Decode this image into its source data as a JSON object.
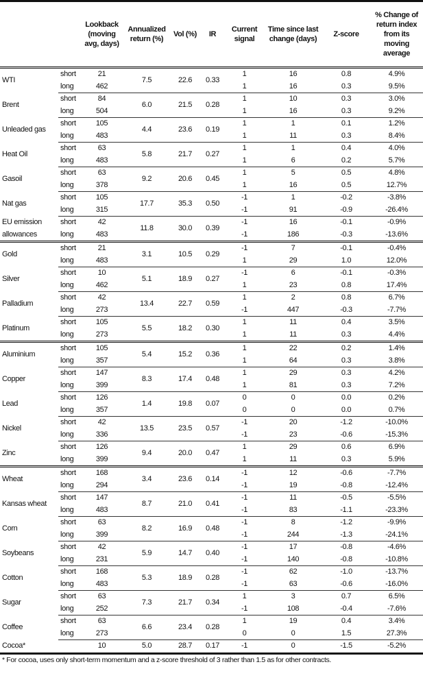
{
  "headers": [
    "",
    "",
    "Lookback (moving avg, days)",
    "Annualized return (%)",
    "Vol (%)",
    "IR",
    "Current signal",
    "Time since last change (days)",
    "Z-score",
    "% Change of return index from its moving average"
  ],
  "rows": [
    {
      "name": "WTI",
      "ann": "7.5",
      "vol": "22.6",
      "ir": "0.33",
      "short": [
        "21",
        "1",
        "16",
        "0.8",
        "4.9%"
      ],
      "long": [
        "462",
        "1",
        "16",
        "0.3",
        "9.5%"
      ]
    },
    {
      "name": "Brent",
      "ann": "6.0",
      "vol": "21.5",
      "ir": "0.28",
      "short": [
        "84",
        "1",
        "10",
        "0.3",
        "3.0%"
      ],
      "long": [
        "504",
        "1",
        "16",
        "0.3",
        "9.2%"
      ]
    },
    {
      "name": "Unleaded gas",
      "ann": "4.4",
      "vol": "23.6",
      "ir": "0.19",
      "short": [
        "105",
        "1",
        "1",
        "0.1",
        "1.2%"
      ],
      "long": [
        "483",
        "1",
        "11",
        "0.3",
        "8.4%"
      ]
    },
    {
      "name": "Heat Oil",
      "ann": "5.8",
      "vol": "21.7",
      "ir": "0.27",
      "short": [
        "63",
        "1",
        "1",
        "0.4",
        "4.0%"
      ],
      "long": [
        "483",
        "1",
        "6",
        "0.2",
        "5.7%"
      ]
    },
    {
      "name": "Gasoil",
      "ann": "9.2",
      "vol": "20.6",
      "ir": "0.45",
      "short": [
        "63",
        "1",
        "5",
        "0.5",
        "4.8%"
      ],
      "long": [
        "378",
        "1",
        "16",
        "0.5",
        "12.7%"
      ]
    },
    {
      "name": "Nat gas",
      "ann": "17.7",
      "vol": "35.3",
      "ir": "0.50",
      "short": [
        "105",
        "-1",
        "1",
        "-0.2",
        "-3.8%"
      ],
      "long": [
        "315",
        "-1",
        "91",
        "-0.9",
        "-26.4%"
      ]
    },
    {
      "name": "EU emission",
      "name2": "allowances",
      "ann": "11.8",
      "vol": "30.0",
      "ir": "0.39",
      "short": [
        "42",
        "-1",
        "16",
        "-0.1",
        "-0.9%"
      ],
      "long": [
        "483",
        "-1",
        "186",
        "-0.3",
        "-13.6%"
      ]
    },
    {
      "name": "Gold",
      "group": true,
      "ann": "3.1",
      "vol": "10.5",
      "ir": "0.29",
      "short": [
        "21",
        "-1",
        "7",
        "-0.1",
        "-0.4%"
      ],
      "long": [
        "483",
        "1",
        "29",
        "1.0",
        "12.0%"
      ]
    },
    {
      "name": "Silver",
      "ann": "5.1",
      "vol": "18.9",
      "ir": "0.27",
      "short": [
        "10",
        "-1",
        "6",
        "-0.1",
        "-0.3%"
      ],
      "long": [
        "462",
        "1",
        "23",
        "0.8",
        "17.4%"
      ]
    },
    {
      "name": "Palladium",
      "ann": "13.4",
      "vol": "22.7",
      "ir": "0.59",
      "short": [
        "42",
        "1",
        "2",
        "0.8",
        "6.7%"
      ],
      "long": [
        "273",
        "-1",
        "447",
        "-0.3",
        "-7.7%"
      ]
    },
    {
      "name": "Platinum",
      "ann": "5.5",
      "vol": "18.2",
      "ir": "0.30",
      "short": [
        "105",
        "1",
        "11",
        "0.4",
        "3.5%"
      ],
      "long": [
        "273",
        "1",
        "11",
        "0.3",
        "4.4%"
      ]
    },
    {
      "name": "Aluminium",
      "group": true,
      "ann": "5.4",
      "vol": "15.2",
      "ir": "0.36",
      "short": [
        "105",
        "1",
        "22",
        "0.2",
        "1.4%"
      ],
      "long": [
        "357",
        "1",
        "64",
        "0.3",
        "3.8%"
      ]
    },
    {
      "name": "Copper",
      "ann": "8.3",
      "vol": "17.4",
      "ir": "0.48",
      "short": [
        "147",
        "1",
        "29",
        "0.3",
        "4.2%"
      ],
      "long": [
        "399",
        "1",
        "81",
        "0.3",
        "7.2%"
      ]
    },
    {
      "name": "Lead",
      "ann": "1.4",
      "vol": "19.8",
      "ir": "0.07",
      "short": [
        "126",
        "0",
        "0",
        "0.0",
        "0.2%"
      ],
      "long": [
        "357",
        "0",
        "0",
        "0.0",
        "0.7%"
      ]
    },
    {
      "name": "Nickel",
      "ann": "13.5",
      "vol": "23.5",
      "ir": "0.57",
      "short": [
        "42",
        "-1",
        "20",
        "-1.2",
        "-10.0%"
      ],
      "long": [
        "336",
        "-1",
        "23",
        "-0.6",
        "-15.3%"
      ]
    },
    {
      "name": "Zinc",
      "ann": "9.4",
      "vol": "20.0",
      "ir": "0.47",
      "short": [
        "126",
        "1",
        "29",
        "0.6",
        "6.9%"
      ],
      "long": [
        "399",
        "1",
        "11",
        "0.3",
        "5.9%"
      ]
    },
    {
      "name": "Wheat",
      "group": true,
      "ann": "3.4",
      "vol": "23.6",
      "ir": "0.14",
      "short": [
        "168",
        "-1",
        "12",
        "-0.6",
        "-7.7%"
      ],
      "long": [
        "294",
        "-1",
        "19",
        "-0.8",
        "-12.4%"
      ]
    },
    {
      "name": "Kansas wheat",
      "ann": "8.7",
      "vol": "21.0",
      "ir": "0.41",
      "short": [
        "147",
        "-1",
        "11",
        "-0.5",
        "-5.5%"
      ],
      "long": [
        "483",
        "-1",
        "83",
        "-1.1",
        "-23.3%"
      ]
    },
    {
      "name": "Corn",
      "ann": "8.2",
      "vol": "16.9",
      "ir": "0.48",
      "short": [
        "63",
        "-1",
        "8",
        "-1.2",
        "-9.9%"
      ],
      "long": [
        "399",
        "-1",
        "244",
        "-1.3",
        "-24.1%"
      ]
    },
    {
      "name": "Soybeans",
      "ann": "5.9",
      "vol": "14.7",
      "ir": "0.40",
      "short": [
        "42",
        "-1",
        "17",
        "-0.8",
        "-4.6%"
      ],
      "long": [
        "231",
        "-1",
        "140",
        "-0.8",
        "-10.8%"
      ]
    },
    {
      "name": "Cotton",
      "ann": "5.3",
      "vol": "18.9",
      "ir": "0.28",
      "short": [
        "168",
        "-1",
        "62",
        "-1.0",
        "-13.7%"
      ],
      "long": [
        "483",
        "-1",
        "63",
        "-0.6",
        "-16.0%"
      ]
    },
    {
      "name": "Sugar",
      "ann": "7.3",
      "vol": "21.7",
      "ir": "0.34",
      "short": [
        "63",
        "1",
        "3",
        "0.7",
        "6.5%"
      ],
      "long": [
        "252",
        "-1",
        "108",
        "-0.4",
        "-7.6%"
      ]
    },
    {
      "name": "Coffee",
      "ann": "6.6",
      "vol": "23.4",
      "ir": "0.28",
      "short": [
        "63",
        "1",
        "19",
        "0.4",
        "3.4%"
      ],
      "long": [
        "273",
        "0",
        "0",
        "1.5",
        "27.3%"
      ]
    }
  ],
  "single": {
    "name": "Cocoa*",
    "values": [
      "10",
      "5.0",
      "28.7",
      "0.17",
      "-1",
      "0",
      "-1.5",
      "-5.2%"
    ]
  },
  "labels": {
    "short": "short",
    "long": "long"
  },
  "footnote": "* For cocoa, uses only short-term momentum and a z-score threshold of 3 rather than 1.5 as for other contracts."
}
